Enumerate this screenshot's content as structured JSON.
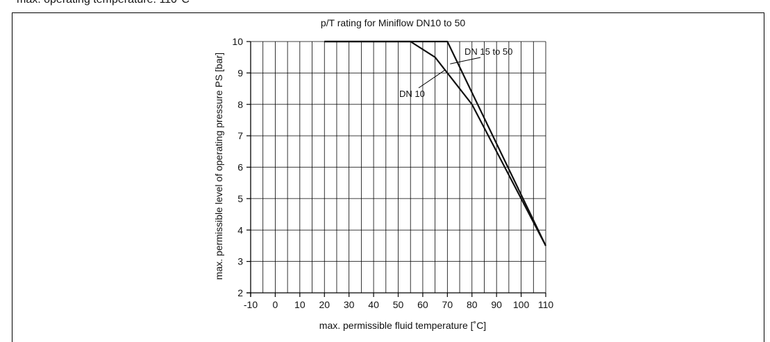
{
  "header_caption": "max. operating temperature: 110°C",
  "chart_data": {
    "type": "line",
    "title": "p/T rating for Miniflow DN10 to 50",
    "xlabel": "max. permissible fluid temperature [˚C]",
    "ylabel": "max. permissible level of operating pressure PS [bar]",
    "xlim": [
      -10,
      110
    ],
    "ylim": [
      2,
      10
    ],
    "x_ticks": [
      -10,
      0,
      10,
      20,
      30,
      40,
      50,
      60,
      70,
      80,
      90,
      100,
      110
    ],
    "y_ticks": [
      2,
      3,
      4,
      5,
      6,
      7,
      8,
      9,
      10
    ],
    "grid": true,
    "minor_x_step": 5,
    "series": [
      {
        "name": "DN 15 to 50",
        "x": [
          20,
          70,
          110
        ],
        "y": [
          10,
          10,
          3.5
        ]
      },
      {
        "name": "DN 10",
        "x": [
          20,
          55,
          65,
          80,
          110
        ],
        "y": [
          10,
          10,
          9.5,
          8,
          3.5
        ]
      }
    ],
    "annotations": [
      {
        "text": "DN 15 to 50",
        "points_to_x": 70,
        "points_to_y": 9.2
      },
      {
        "text": "DN 10",
        "points_to_x": 70,
        "points_to_y": 9.1
      }
    ]
  }
}
